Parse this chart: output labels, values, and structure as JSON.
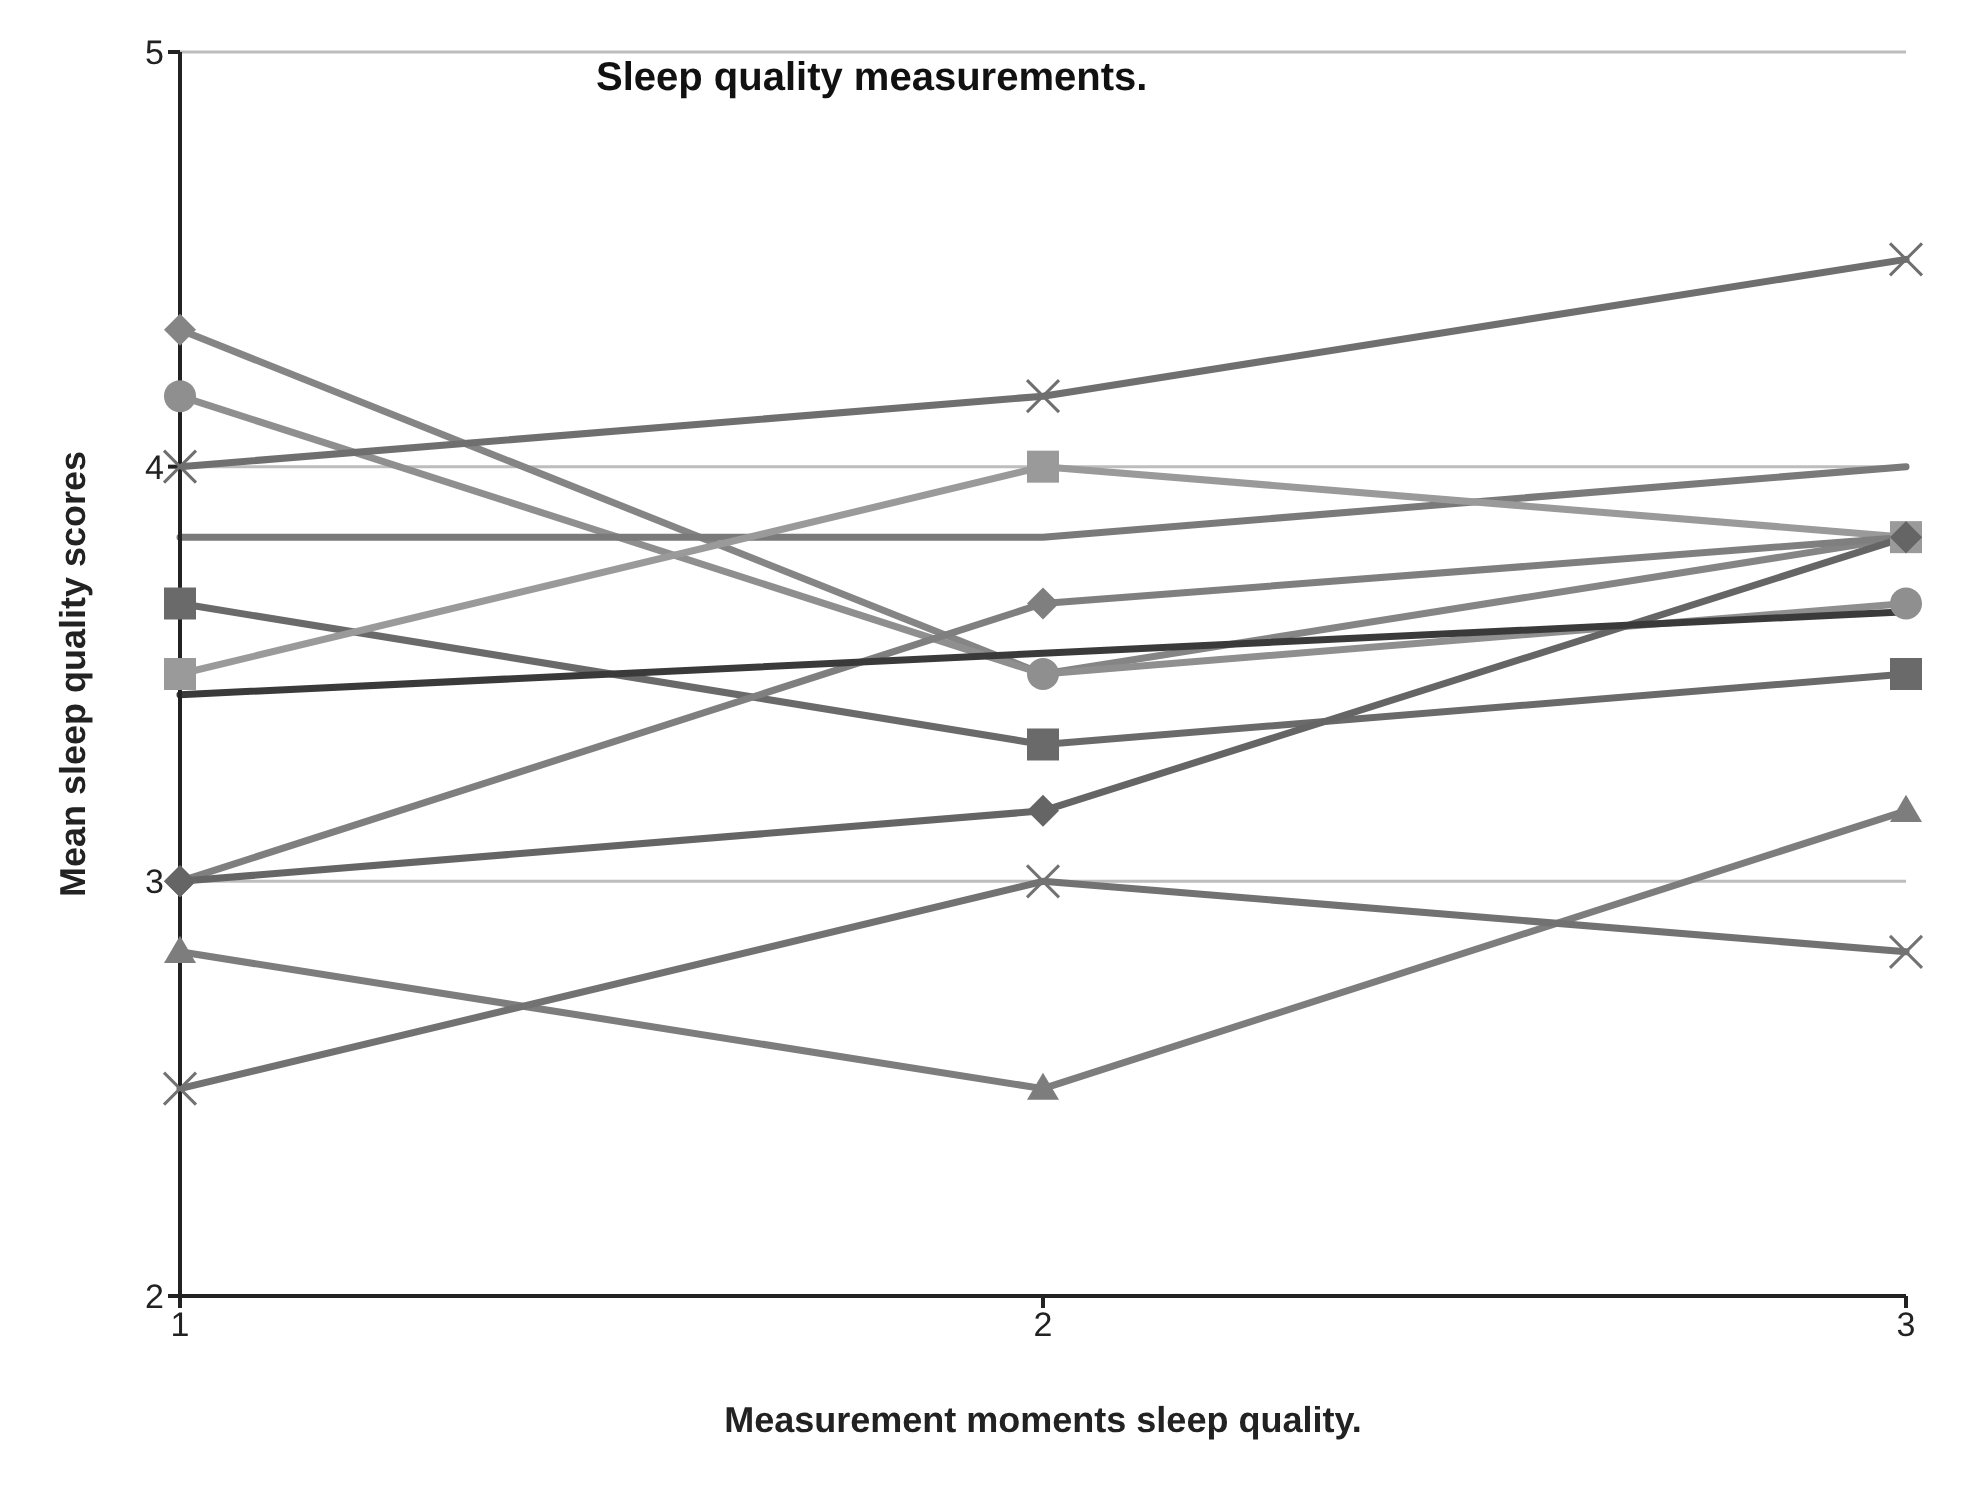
{
  "chart_data": {
    "type": "line",
    "title": "Sleep quality measurements.",
    "xlabel": "Measurement moments sleep quality.",
    "ylabel": "Mean sleep quality scores",
    "x": [
      1,
      2,
      3
    ],
    "xlim": [
      1,
      3
    ],
    "xticks": [
      1,
      2,
      3
    ],
    "ylim": [
      2,
      5
    ],
    "yticks": [
      2,
      3,
      4,
      5
    ],
    "grid": "y",
    "series": [
      {
        "color": "#858585",
        "marker": "diamond",
        "values": [
          4.33,
          3.5,
          3.83
        ]
      },
      {
        "color": "#8f8f8f",
        "marker": "circle",
        "values": [
          4.17,
          3.5,
          3.67
        ]
      },
      {
        "color": "#6f6f6f",
        "marker": "cross",
        "values": [
          4.0,
          4.17,
          4.5
        ]
      },
      {
        "color": "#7a7a7a",
        "marker": "none",
        "values": [
          3.83,
          3.83,
          4.0
        ]
      },
      {
        "color": "#6a6a6a",
        "marker": "square",
        "values": [
          3.67,
          3.33,
          3.5
        ]
      },
      {
        "color": "#9a9a9a",
        "marker": "square",
        "values": [
          3.5,
          4.0,
          3.83
        ]
      },
      {
        "color": "#7f7f7f",
        "marker": "diamond",
        "values": [
          3.0,
          3.67,
          3.83
        ]
      },
      {
        "color": "#656565",
        "marker": "diamond",
        "values": [
          3.0,
          3.17,
          3.83
        ]
      },
      {
        "color": "#7d7d7d",
        "marker": "triangle",
        "values": [
          2.83,
          2.5,
          3.17
        ]
      },
      {
        "color": "#727272",
        "marker": "cross",
        "values": [
          2.5,
          3.0,
          2.83
        ]
      },
      {
        "color": "#3a3a3a",
        "marker": "none",
        "values": [
          3.45,
          3.55,
          3.65
        ]
      }
    ]
  }
}
